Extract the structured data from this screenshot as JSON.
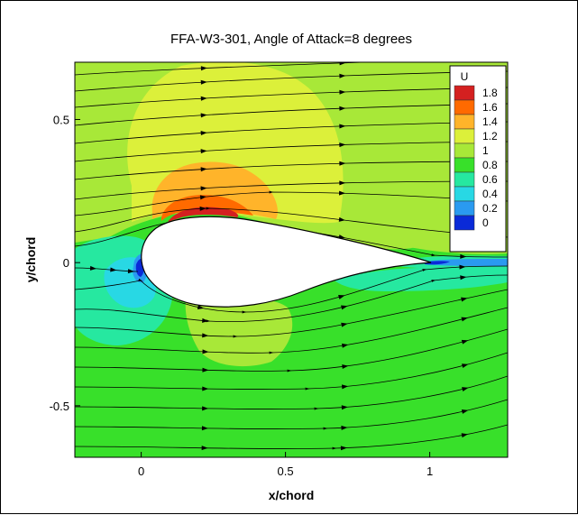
{
  "chart_data": {
    "type": "heatmap",
    "title": "FFA-W3-301, Angle of Attack=8 degrees",
    "xlabel": "x/chord",
    "ylabel": "y/chord",
    "xlim": [
      -0.23,
      1.27
    ],
    "ylim": [
      -0.68,
      0.7
    ],
    "xticks": [
      {
        "value": 0,
        "label": "0"
      },
      {
        "value": 0.5,
        "label": "0.5"
      },
      {
        "value": 1,
        "label": "1"
      }
    ],
    "yticks": [
      {
        "value": 0.5,
        "label": "0.5"
      },
      {
        "value": 0,
        "label": "0"
      },
      {
        "value": -0.5,
        "label": "-0.5"
      }
    ],
    "colorbar": {
      "variable": "U",
      "placement": "top-right",
      "levels": [
        {
          "value": 1.8,
          "label": "1.8",
          "color": "#d42020"
        },
        {
          "value": 1.6,
          "label": "1.6",
          "color": "#ff6a00"
        },
        {
          "value": 1.4,
          "label": "1.4",
          "color": "#ffb42a"
        },
        {
          "value": 1.2,
          "label": "1.2",
          "color": "#dcf03a"
        },
        {
          "value": 1.0,
          "label": "1",
          "color": "#a8e838"
        },
        {
          "value": 0.8,
          "label": "0.8",
          "color": "#38e02a"
        },
        {
          "value": 0.6,
          "label": "0.6",
          "color": "#26e8a0"
        },
        {
          "value": 0.4,
          "label": "0.4",
          "color": "#28d8e4"
        },
        {
          "value": 0.2,
          "label": "0.2",
          "color": "#2a9af0"
        },
        {
          "value": 0.0,
          "label": "0",
          "color": "#0a2ad8"
        }
      ]
    },
    "airfoil": {
      "leading_edge": [
        0.0,
        0.0
      ],
      "trailing_edge": [
        1.0,
        0.0
      ],
      "angle_of_attack_deg": 8
    },
    "grid": false
  }
}
